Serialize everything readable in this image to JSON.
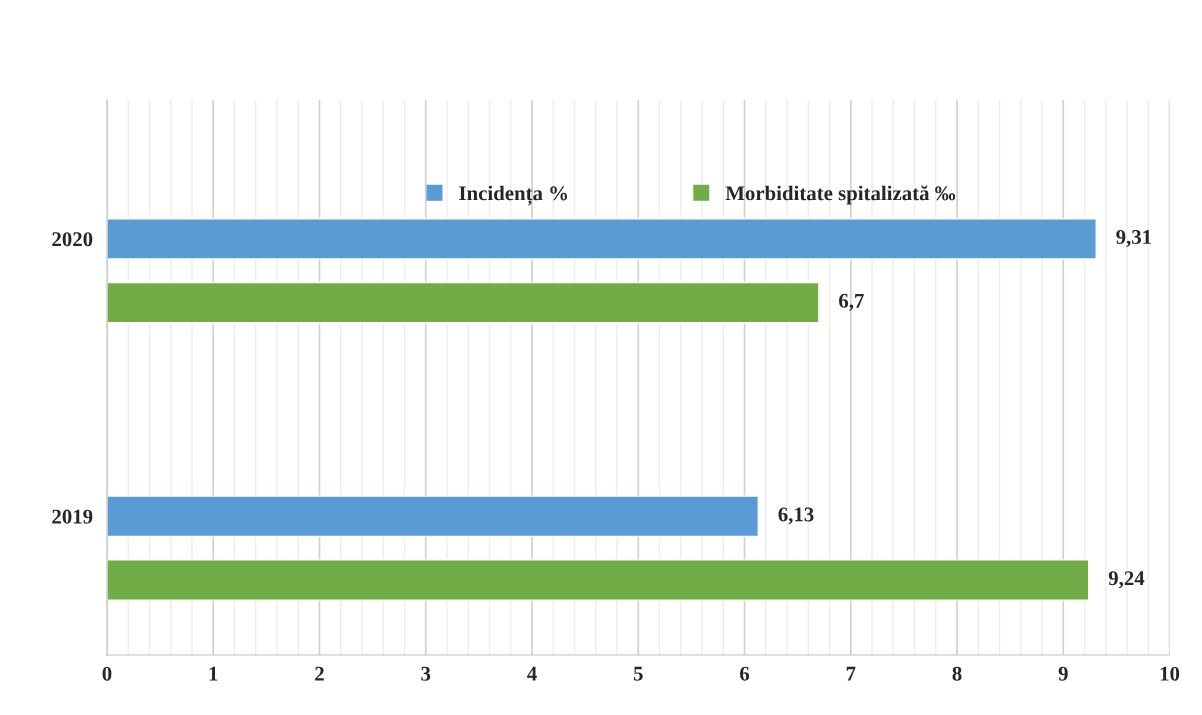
{
  "chart_data": {
    "type": "bar",
    "orientation": "horizontal",
    "categories": [
      "2020",
      "2019"
    ],
    "series": [
      {
        "name": "Incidența %",
        "color": "#5b9bd5",
        "values": [
          9.31,
          6.13
        ],
        "value_labels": [
          "9,31",
          "6,13"
        ]
      },
      {
        "name": "Morbiditate spitalizată ‰",
        "color": "#70ad47",
        "values": [
          6.7,
          9.24
        ],
        "value_labels": [
          "6,7",
          "9,24"
        ]
      }
    ],
    "xlim": [
      0,
      10
    ],
    "xticks": [
      0,
      1,
      2,
      3,
      4,
      5,
      6,
      7,
      8,
      9,
      10
    ],
    "grid": "x",
    "legend": "top"
  }
}
